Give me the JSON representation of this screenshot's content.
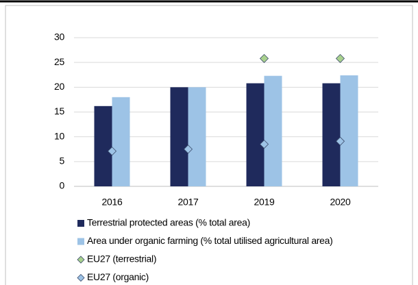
{
  "chart_data": {
    "type": "bar",
    "categories": [
      "2016",
      "2017",
      "2019",
      "2020"
    ],
    "series": [
      {
        "name": "Terrestrial protected areas (% total area)",
        "type": "bar",
        "color": "#1f2a5c",
        "values": [
          16.2,
          20.0,
          20.8,
          20.8
        ]
      },
      {
        "name": "Area under organic farming (% total utilised agricultural area)",
        "type": "bar",
        "color": "#9dc3e6",
        "values": [
          18.0,
          20.0,
          22.3,
          22.4
        ]
      },
      {
        "name": "EU27 (terrestrial)",
        "type": "scatter",
        "marker": "diamond",
        "color": "#a9d18e",
        "values": [
          null,
          null,
          25.8,
          25.8
        ]
      },
      {
        "name": "EU27 (organic)",
        "type": "scatter",
        "marker": "diamond",
        "color": "#9dc3e6",
        "values": [
          7.1,
          7.5,
          8.5,
          9.1
        ]
      }
    ],
    "ylim": [
      0,
      30
    ],
    "yticks": [
      0,
      5,
      10,
      15,
      20,
      25,
      30
    ],
    "grid": true
  }
}
